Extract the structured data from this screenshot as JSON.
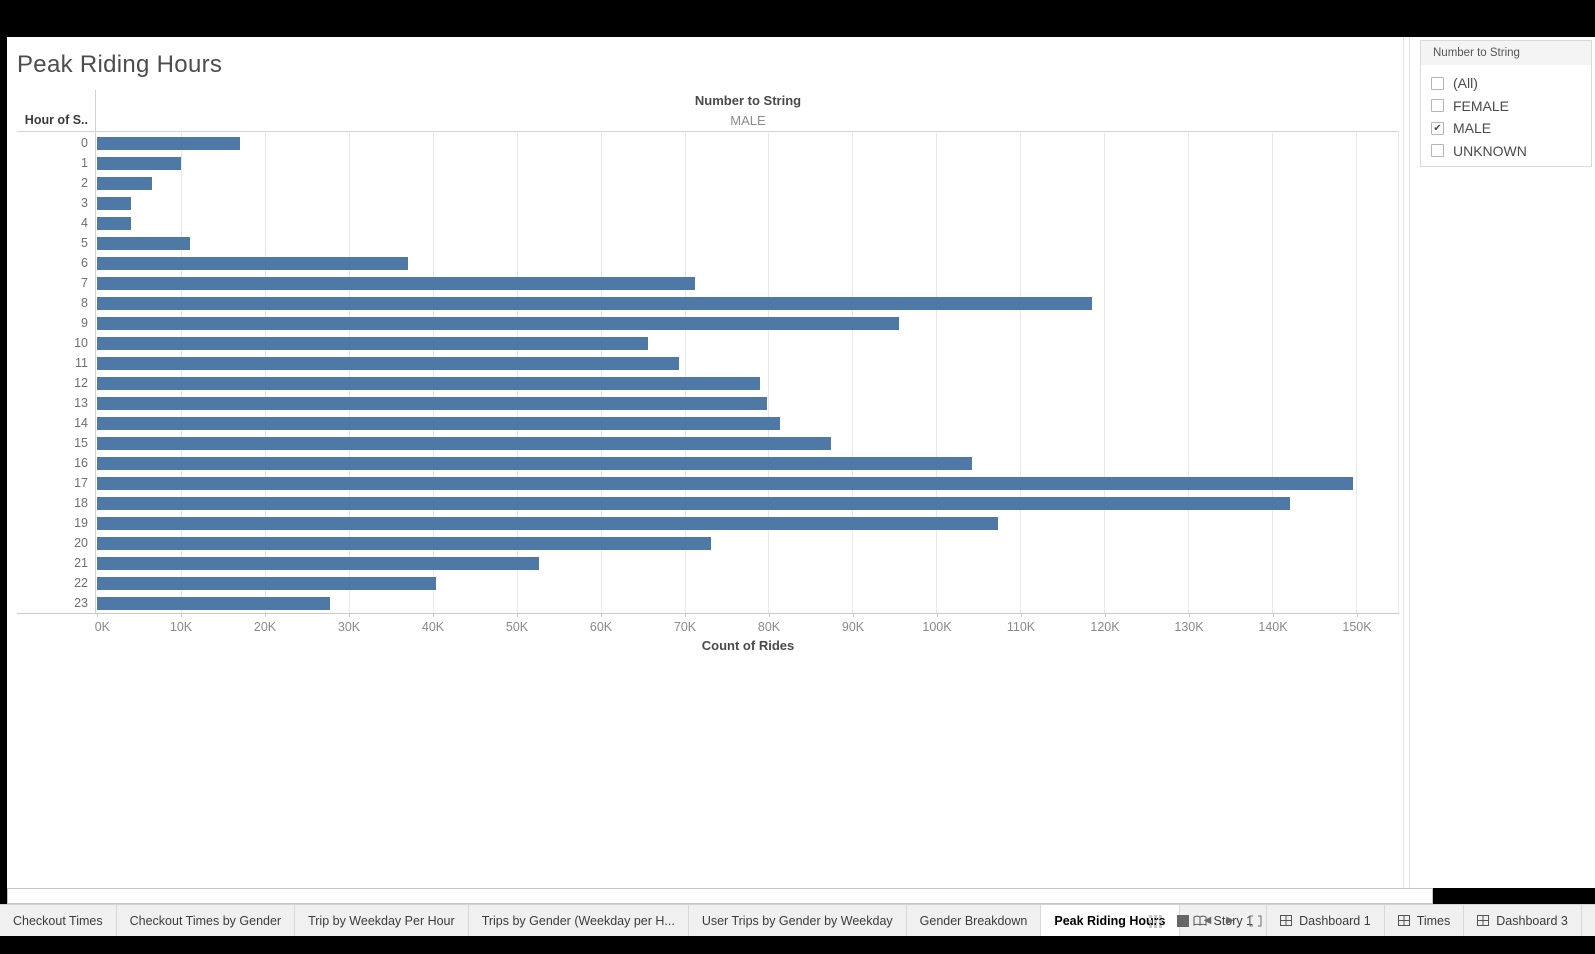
{
  "sheet": {
    "title": "Peak Riding Hours"
  },
  "chart_data": {
    "type": "bar",
    "orientation": "horizontal",
    "title": "Peak Riding Hours",
    "column_header_field": "Number to String",
    "column_header_value": "MALE",
    "row_header": "Hour of S..",
    "xlabel": "Count of Rides",
    "categories": [
      "0",
      "1",
      "2",
      "3",
      "4",
      "5",
      "6",
      "7",
      "8",
      "9",
      "10",
      "11",
      "12",
      "13",
      "14",
      "15",
      "16",
      "17",
      "18",
      "19",
      "20",
      "21",
      "22",
      "23"
    ],
    "values": [
      17000,
      10000,
      6600,
      4000,
      4000,
      11100,
      37000,
      71200,
      118600,
      95500,
      65700,
      69300,
      79000,
      79800,
      81400,
      87400,
      104200,
      149600,
      142100,
      107400,
      73200,
      52700,
      40400,
      27700
    ],
    "xlim": [
      0,
      155000
    ],
    "tick_values": [
      0,
      10000,
      20000,
      30000,
      40000,
      50000,
      60000,
      70000,
      80000,
      90000,
      100000,
      110000,
      120000,
      130000,
      140000,
      150000
    ],
    "tick_labels": [
      "0K",
      "10K",
      "20K",
      "30K",
      "40K",
      "50K",
      "60K",
      "70K",
      "80K",
      "90K",
      "100K",
      "110K",
      "120K",
      "130K",
      "140K",
      "150K"
    ],
    "bar_color": "#4e79a7",
    "grid": true,
    "legend_position": "none"
  },
  "filter_panel": {
    "title": "Number to String",
    "items": [
      {
        "label": "(All)",
        "checked": false
      },
      {
        "label": "FEMALE",
        "checked": false
      },
      {
        "label": "MALE",
        "checked": true
      },
      {
        "label": "UNKNOWN",
        "checked": false
      }
    ],
    "check_glyph": "✔"
  },
  "tab_bar": {
    "tabs": [
      {
        "label": "Checkout Times",
        "type": "worksheet",
        "active": false
      },
      {
        "label": "Checkout Times by Gender",
        "type": "worksheet",
        "active": false
      },
      {
        "label": "Trip by Weekday Per Hour",
        "type": "worksheet",
        "active": false
      },
      {
        "label": "Trips by Gender (Weekday per H...",
        "type": "worksheet",
        "active": false
      },
      {
        "label": "User Trips by Gender by Weekday",
        "type": "worksheet",
        "active": false
      },
      {
        "label": "Gender Breakdown",
        "type": "worksheet",
        "active": false
      },
      {
        "label": "Peak Riding Hours",
        "type": "worksheet",
        "active": true
      },
      {
        "label": "Story 1",
        "type": "story",
        "active": false
      },
      {
        "label": "Dashboard 1",
        "type": "dashboard",
        "active": false
      },
      {
        "label": "Times",
        "type": "dashboard",
        "active": false
      },
      {
        "label": "Dashboard 3",
        "type": "dashboard",
        "active": false
      }
    ],
    "status_icons": [
      "sheet-sorter-icon",
      "filmstrip-icon",
      "previous-sheet-icon",
      "next-sheet-icon",
      "fullscreen-icon",
      "presentation-mode-icon"
    ],
    "arrow_prev_glyph": "◀",
    "arrow_next_glyph": "▶"
  }
}
